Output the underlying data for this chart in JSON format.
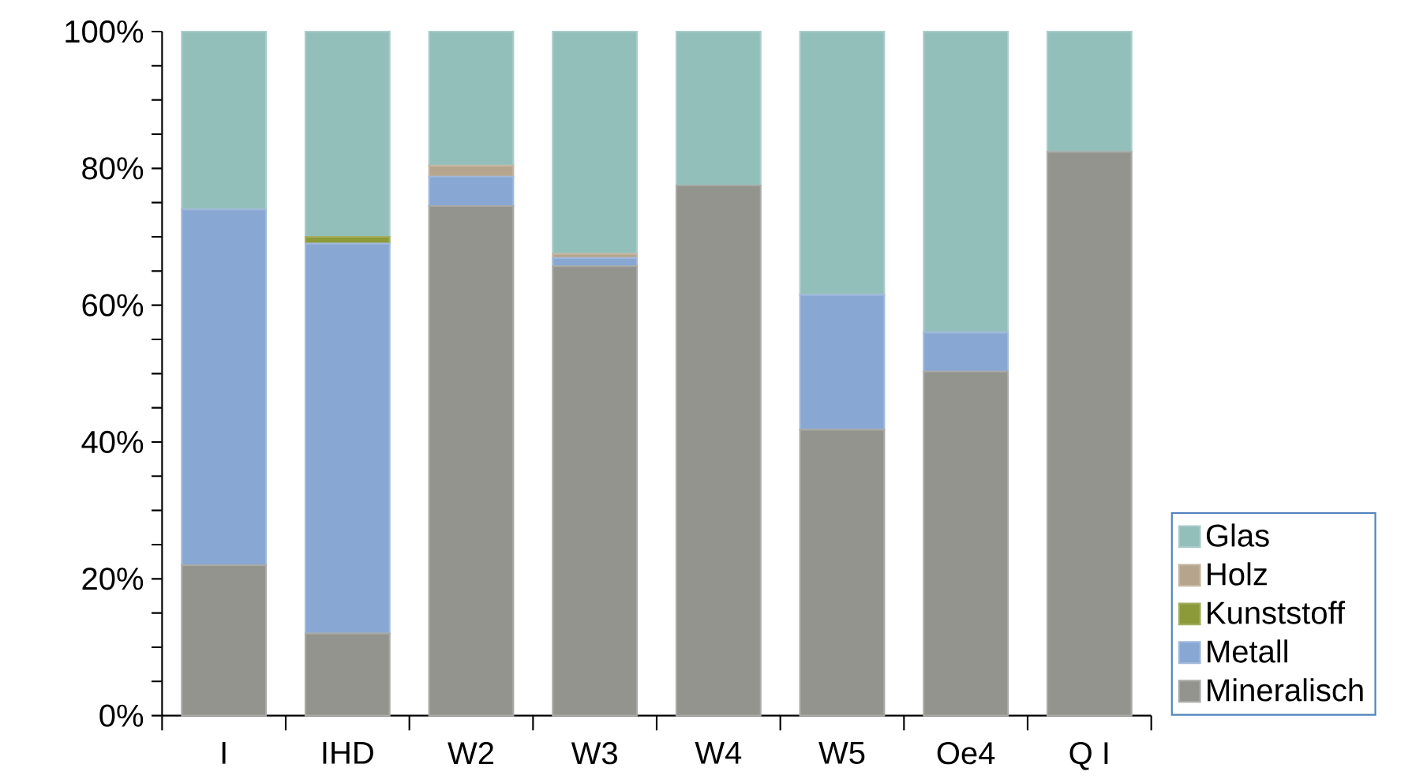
{
  "chart_data": {
    "type": "bar",
    "stacked": true,
    "legend": "bottom right",
    "categories": [
      "I",
      "IHD",
      "W2",
      "W3",
      "W4",
      "W5",
      "Oe4",
      "Q I"
    ],
    "series": [
      {
        "name": "Mineralisch",
        "color": "#94948e",
        "values": [
          22,
          12,
          74.5,
          65.7,
          77.5,
          41.8,
          50.3,
          82.4
        ]
      },
      {
        "name": "Metall",
        "color": "#88a7d2",
        "values": [
          52,
          57,
          4.3,
          1.2,
          0,
          19.7,
          5.7,
          0
        ]
      },
      {
        "name": "Kunststoff",
        "color": "#8c9a3a",
        "values": [
          0,
          1,
          0,
          0,
          0,
          0,
          0,
          0
        ]
      },
      {
        "name": "Holz",
        "color": "#b5a58c",
        "values": [
          0,
          0,
          1.6,
          0.6,
          0,
          0,
          0,
          0
        ]
      },
      {
        "name": "Glas",
        "color": "#93bfbb",
        "values": [
          26,
          30,
          19.6,
          32.5,
          22.5,
          38.5,
          44,
          17.6
        ]
      }
    ],
    "ylim": [
      0,
      100
    ],
    "yticks": [
      {
        "value": 0,
        "label": "0%"
      },
      {
        "value": 5,
        "label": null
      },
      {
        "value": 10,
        "label": null
      },
      {
        "value": 15,
        "label": null
      },
      {
        "value": 20,
        "label": "20%"
      },
      {
        "value": 25,
        "label": null
      },
      {
        "value": 30,
        "label": null
      },
      {
        "value": 35,
        "label": null
      },
      {
        "value": 40,
        "label": "40%"
      },
      {
        "value": 45,
        "label": null
      },
      {
        "value": 50,
        "label": null
      },
      {
        "value": 55,
        "label": null
      },
      {
        "value": 60,
        "label": "60%"
      },
      {
        "value": 65,
        "label": null
      },
      {
        "value": 70,
        "label": null
      },
      {
        "value": 75,
        "label": null
      },
      {
        "value": 80,
        "label": "80%"
      },
      {
        "value": 85,
        "label": null
      },
      {
        "value": 90,
        "label": null
      },
      {
        "value": 95,
        "label": null
      },
      {
        "value": 100,
        "label": "100%"
      }
    ]
  }
}
